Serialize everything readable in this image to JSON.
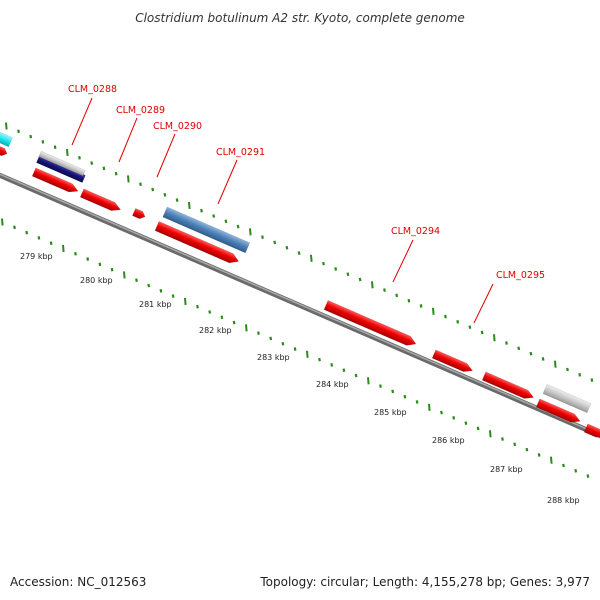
{
  "title": "Clostridium botulinum A2 str. Kyoto, complete genome",
  "footer": {
    "accession": "Accession: NC_012563",
    "summary": "Topology: circular; Length: 4,155,278 bp; Genes: 3,977"
  },
  "gene_labels": [
    "CLM_0288",
    "CLM_0289",
    "CLM_0290",
    "CLM_0291",
    "CLM_0294",
    "CLM_0295"
  ],
  "ticks": [
    "279 kbp",
    "280 kbp",
    "281 kbp",
    "282 kbp",
    "283 kbp",
    "284 kbp",
    "285 kbp",
    "286 kbp",
    "287 kbp",
    "288 kbp"
  ],
  "colors": {
    "backbone": "#8a8a8a",
    "gene_red": "#ee0000",
    "gene_dark_blue": "#14147a",
    "gene_steel_blue": "#4a7fb5",
    "gene_gray": "#c8c8c8",
    "gene_cyan": "#22e6ee",
    "dotted_track": "#2a8a1a",
    "label_red": "#e00000"
  }
}
